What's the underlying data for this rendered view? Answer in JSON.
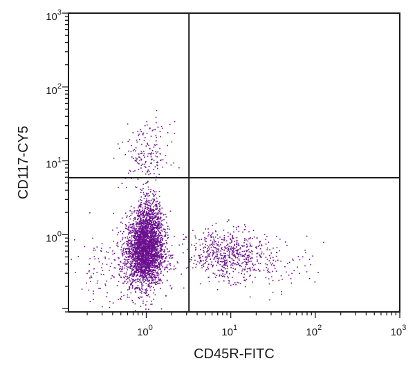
{
  "chart_data": {
    "type": "scatter",
    "xlabel": "CD45R-FITC",
    "ylabel": "CD117-CY5",
    "x_scale": "log",
    "y_scale": "log",
    "xlim": [
      0.12,
      1000
    ],
    "ylim": [
      0.09,
      1000
    ],
    "x_ticks": [
      {
        "value": 1,
        "base": "10",
        "exp": "0"
      },
      {
        "value": 10,
        "base": "10",
        "exp": "1"
      },
      {
        "value": 100,
        "base": "10",
        "exp": "2"
      },
      {
        "value": 1000,
        "base": "10",
        "exp": "3"
      }
    ],
    "y_ticks": [
      {
        "value": 1,
        "base": "10",
        "exp": "0"
      },
      {
        "value": 10,
        "base": "10",
        "exp": "1"
      },
      {
        "value": 100,
        "base": "10",
        "exp": "2"
      },
      {
        "value": 1000,
        "base": "10",
        "exp": "3"
      }
    ],
    "quadrant_gates": {
      "x": 3.2,
      "y": 5.9
    },
    "point_color": "#6a0f8e",
    "populations": [
      {
        "center_x": 0.95,
        "center_y": 0.62,
        "spread_x_decades": 0.11,
        "spread_y_decades": 0.24,
        "count": 2600
      },
      {
        "center_x": 1.1,
        "center_y": 1.6,
        "spread_x_decades": 0.08,
        "spread_y_decades": 0.2,
        "count": 450
      },
      {
        "center_x": 1.0,
        "center_y": 12,
        "spread_x_decades": 0.14,
        "spread_y_decades": 0.22,
        "count": 170
      },
      {
        "center_x": 8.5,
        "center_y": 0.55,
        "spread_x_decades": 0.22,
        "spread_y_decades": 0.17,
        "count": 520
      },
      {
        "center_x": 25,
        "center_y": 0.45,
        "spread_x_decades": 0.28,
        "spread_y_decades": 0.18,
        "count": 150
      },
      {
        "center_x": 0.5,
        "center_y": 0.35,
        "spread_x_decades": 0.3,
        "spread_y_decades": 0.25,
        "count": 220
      }
    ]
  }
}
